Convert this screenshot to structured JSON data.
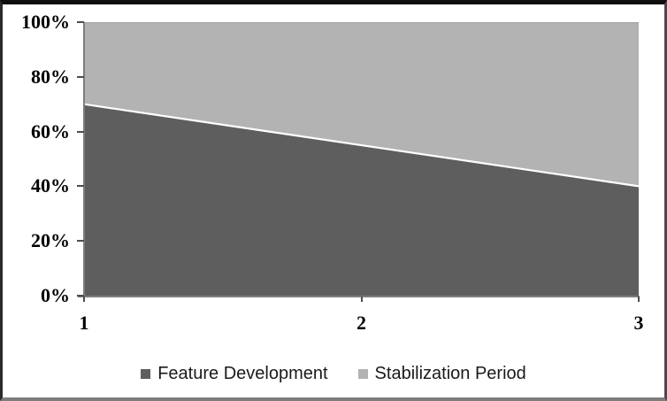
{
  "chart_data": {
    "type": "area",
    "stacked": true,
    "percent_stacked": true,
    "title": "",
    "xlabel": "",
    "ylabel": "",
    "x": [
      1,
      2,
      3
    ],
    "x_tick_labels": [
      "1",
      "2",
      "3"
    ],
    "series": [
      {
        "name": "Feature Development",
        "values": [
          70,
          55,
          40
        ],
        "color": "#5e5e5e"
      },
      {
        "name": "Stabilization Period",
        "values": [
          30,
          45,
          60
        ],
        "color": "#b3b3b3"
      }
    ],
    "ylim": [
      0,
      100
    ],
    "y_ticks": [
      {
        "label": "0%",
        "value": 0
      },
      {
        "label": "20%",
        "value": 20
      },
      {
        "label": "40%",
        "value": 40
      },
      {
        "label": "60%",
        "value": 60
      },
      {
        "label": "80%",
        "value": 80
      },
      {
        "label": "100%",
        "value": 100
      }
    ],
    "grid": "off",
    "plot_top_border_color": "#a8a8a8",
    "separator_color": "#ffffff",
    "axis_color": "#7d7d7d",
    "legend_position": "bottom"
  }
}
